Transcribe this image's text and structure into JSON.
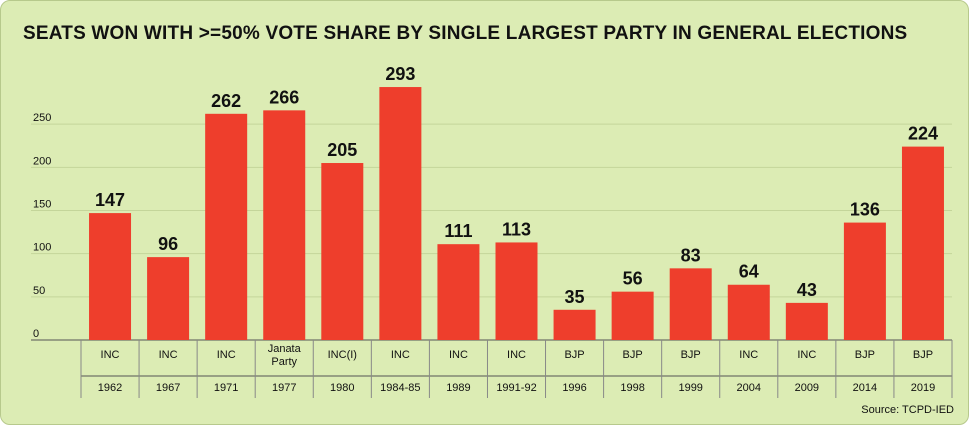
{
  "chart_data": {
    "type": "bar",
    "title": "SEATS WON WITH >=50% VOTE SHARE BY SINGLE LARGEST PARTY IN GENERAL ELECTIONS",
    "categories": [
      "1962",
      "1967",
      "1971",
      "1977",
      "1980",
      "1984-85",
      "1989",
      "1991-92",
      "1996",
      "1998",
      "1999",
      "2004",
      "2009",
      "2014",
      "2019"
    ],
    "parties": [
      [
        "INC"
      ],
      [
        "INC"
      ],
      [
        "INC"
      ],
      [
        "Janata",
        "Party"
      ],
      [
        "INC(I)"
      ],
      [
        "INC"
      ],
      [
        "INC"
      ],
      [
        "INC"
      ],
      [
        "BJP"
      ],
      [
        "BJP"
      ],
      [
        "BJP"
      ],
      [
        "INC"
      ],
      [
        "INC"
      ],
      [
        "BJP"
      ],
      [
        "BJP"
      ]
    ],
    "values": [
      147,
      96,
      262,
      266,
      205,
      293,
      111,
      113,
      35,
      56,
      83,
      64,
      43,
      136,
      224
    ],
    "yticks": [
      0,
      50,
      100,
      150,
      200,
      250
    ],
    "ylim": [
      0,
      300
    ],
    "grid": true,
    "colors": {
      "bar": "#ee3e2c",
      "background": "#dcecb4",
      "grid": "#c4d59a"
    }
  },
  "source": "Source: TCPD-IED"
}
